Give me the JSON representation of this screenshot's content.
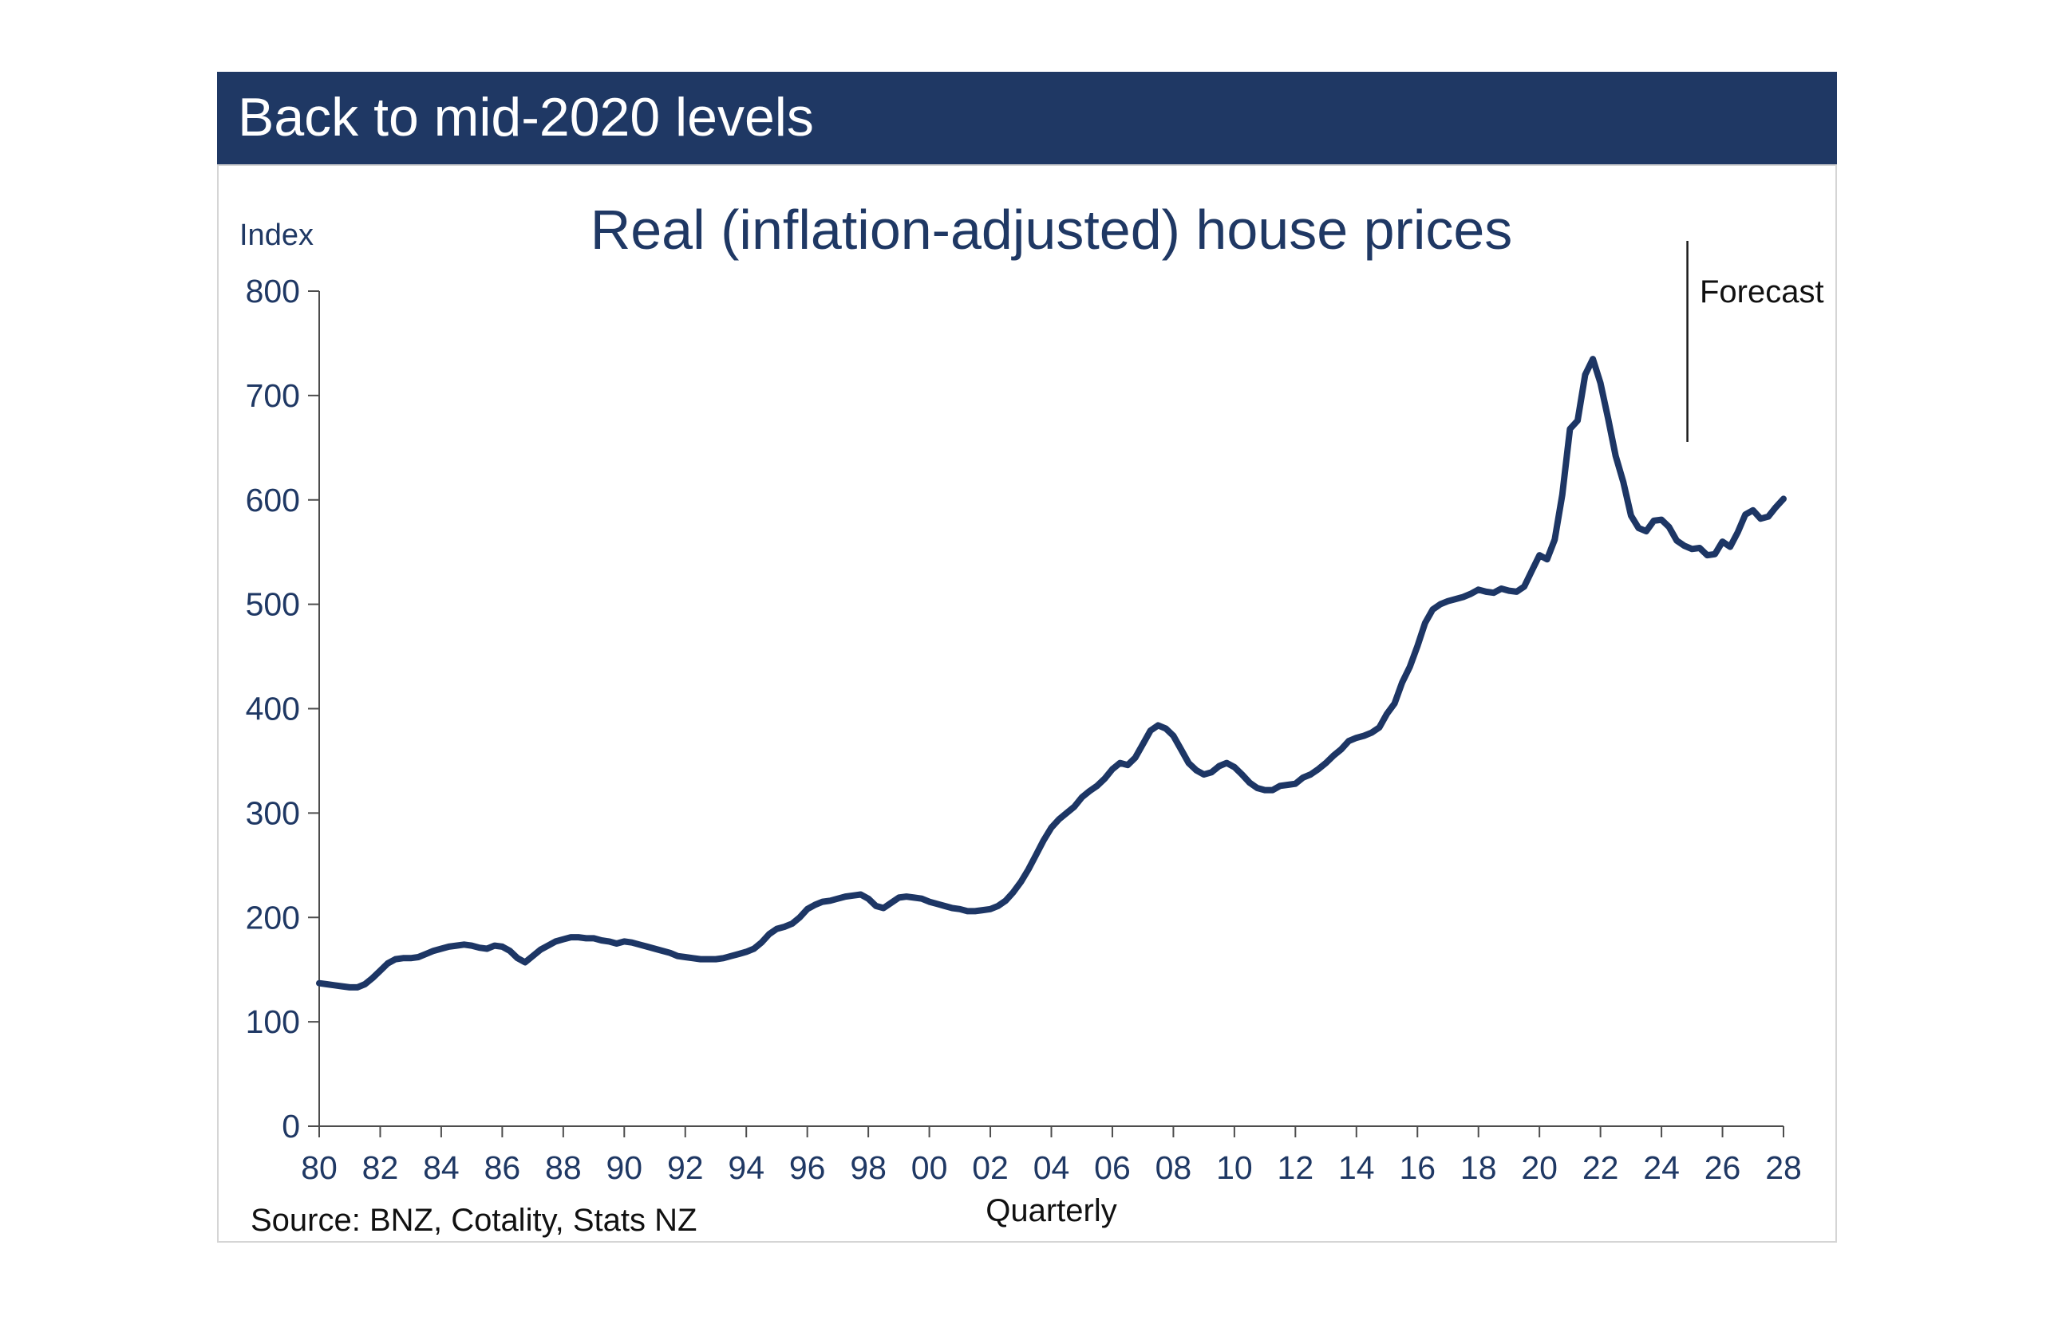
{
  "header": {
    "title": "Back to mid-2020 levels"
  },
  "chart": {
    "index_label": "Index",
    "title": "Real (inflation-adjusted) house prices",
    "forecast_label": "Forecast",
    "xlabel": "Quarterly",
    "source": "Source: BNZ, Cotality, Stats NZ"
  },
  "colors": {
    "navy": "#1f3864",
    "line": "#1d3665",
    "axis": "#4d4d4d",
    "forecast_line": "#1a1a1a",
    "card_border": "#d5d5d5",
    "header_text": "#ffffff"
  },
  "chart_data": {
    "type": "line",
    "title": "Real (inflation-adjusted) house prices",
    "ylabel": "Index",
    "xlabel": "Quarterly",
    "ylim": [
      0,
      800
    ],
    "y_ticks": [
      0,
      100,
      200,
      300,
      400,
      500,
      600,
      700,
      800
    ],
    "x_ticks": [
      {
        "year": 1980,
        "label": "80"
      },
      {
        "year": 1982,
        "label": "82"
      },
      {
        "year": 1984,
        "label": "84"
      },
      {
        "year": 1986,
        "label": "86"
      },
      {
        "year": 1988,
        "label": "88"
      },
      {
        "year": 1990,
        "label": "90"
      },
      {
        "year": 1992,
        "label": "92"
      },
      {
        "year": 1994,
        "label": "94"
      },
      {
        "year": 1996,
        "label": "96"
      },
      {
        "year": 1998,
        "label": "98"
      },
      {
        "year": 2000,
        "label": "00"
      },
      {
        "year": 2002,
        "label": "02"
      },
      {
        "year": 2004,
        "label": "04"
      },
      {
        "year": 2006,
        "label": "06"
      },
      {
        "year": 2008,
        "label": "08"
      },
      {
        "year": 2010,
        "label": "10"
      },
      {
        "year": 2012,
        "label": "12"
      },
      {
        "year": 2014,
        "label": "14"
      },
      {
        "year": 2016,
        "label": "16"
      },
      {
        "year": 2018,
        "label": "18"
      },
      {
        "year": 2020,
        "label": "20"
      },
      {
        "year": 2022,
        "label": "22"
      },
      {
        "year": 2024,
        "label": "24"
      },
      {
        "year": 2026,
        "label": "26"
      },
      {
        "year": 2028,
        "label": "28"
      }
    ],
    "xlim": [
      1980,
      2028
    ],
    "grid": false,
    "legend": "none",
    "forecast_divider_x": 2024.85,
    "annotation": "Forecast",
    "series": [
      {
        "name": "Real house price index (quarterly)",
        "x_start": 1980.0,
        "x_step": 0.25,
        "values": [
          137,
          136,
          135,
          134,
          133,
          133,
          136,
          142,
          149,
          156,
          160,
          161,
          161,
          162,
          165,
          168,
          170,
          172,
          173,
          174,
          173,
          171,
          170,
          173,
          172,
          168,
          161,
          157,
          163,
          169,
          173,
          177,
          179,
          181,
          181,
          180,
          180,
          178,
          177,
          175,
          177,
          176,
          174,
          172,
          170,
          168,
          166,
          163,
          162,
          161,
          160,
          160,
          160,
          161,
          163,
          165,
          167,
          170,
          176,
          184,
          189,
          191,
          194,
          200,
          208,
          212,
          215,
          216,
          218,
          220,
          221,
          222,
          218,
          211,
          209,
          214,
          219,
          220,
          219,
          218,
          215,
          213,
          211,
          209,
          208,
          206,
          206,
          207,
          208,
          211,
          216,
          224,
          234,
          246,
          260,
          274,
          286,
          294,
          300,
          306,
          315,
          321,
          326,
          333,
          342,
          348,
          346,
          353,
          366,
          379,
          384,
          381,
          374,
          361,
          348,
          341,
          337,
          339,
          345,
          348,
          344,
          337,
          329,
          324,
          322,
          322,
          326,
          327,
          328,
          334,
          337,
          342,
          348,
          355,
          361,
          369,
          372,
          374,
          377,
          382,
          395,
          405,
          425,
          440,
          460,
          482,
          495,
          500,
          503,
          505,
          507,
          510,
          514,
          512,
          511,
          515,
          513,
          512,
          517,
          532,
          547,
          543,
          562,
          605,
          668,
          676,
          720,
          735,
          712,
          678,
          642,
          617,
          585,
          573,
          570,
          580,
          581,
          574,
          561,
          556,
          553,
          554,
          547,
          548,
          560,
          555,
          569,
          586,
          590,
          582,
          584,
          593,
          601
        ]
      }
    ]
  }
}
